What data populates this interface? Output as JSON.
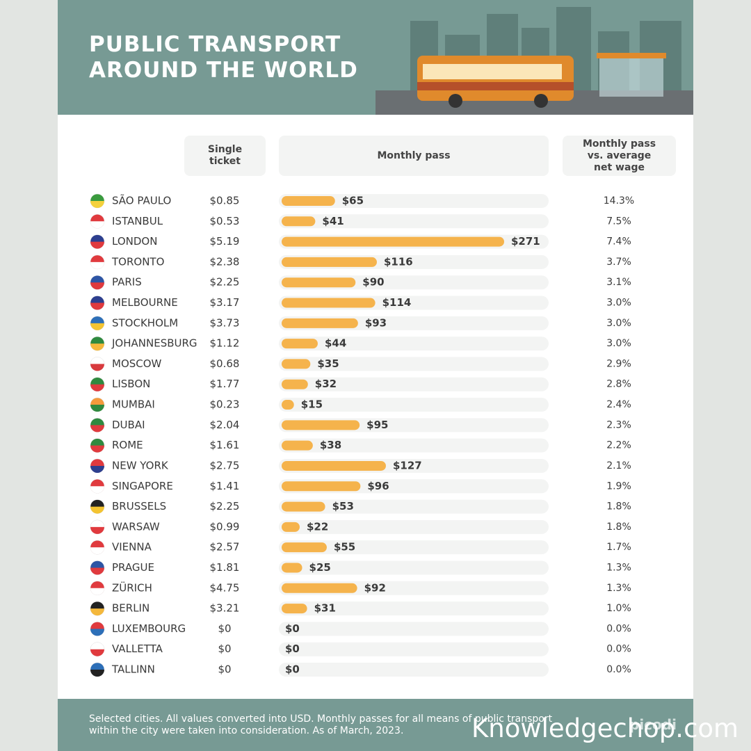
{
  "chart_data": {
    "type": "bar",
    "title": "PUBLIC TRANSPORT AROUND THE WORLD",
    "column_headers": [
      "Single ticket",
      "Monthly pass",
      "Monthly pass vs. average net wage"
    ],
    "categories": [
      "SÃO PAULO",
      "ISTANBUL",
      "LONDON",
      "TORONTO",
      "PARIS",
      "MELBOURNE",
      "STOCKHOLM",
      "JOHANNESBURG",
      "MOSCOW",
      "LISBON",
      "MUMBAI",
      "DUBAI",
      "ROME",
      "NEW YORK",
      "SINGAPORE",
      "BRUSSELS",
      "WARSAW",
      "VIENNA",
      "PRAGUE",
      "ZÜRICH",
      "BERLIN",
      "LUXEMBOURG",
      "VALLETTA",
      "TALLINN"
    ],
    "single_ticket": {
      "values": [
        0.85,
        0.53,
        5.19,
        2.38,
        2.25,
        3.17,
        3.73,
        1.12,
        0.68,
        1.77,
        0.23,
        2.04,
        1.61,
        2.75,
        1.41,
        2.25,
        0.99,
        2.57,
        1.81,
        4.75,
        3.21,
        0,
        0,
        0
      ],
      "value_labels": [
        "$0.85",
        "$0.53",
        "$5.19",
        "$2.38",
        "$2.25",
        "$3.17",
        "$3.73",
        "$1.12",
        "$0.68",
        "$1.77",
        "$0.23",
        "$2.04",
        "$1.61",
        "$2.75",
        "$1.41",
        "$2.25",
        "$0.99",
        "$2.57",
        "$1.81",
        "$4.75",
        "$3.21",
        "$0",
        "$0",
        "$0"
      ]
    },
    "values": [
      65,
      41,
      271,
      116,
      90,
      114,
      93,
      44,
      35,
      32,
      15,
      95,
      38,
      127,
      96,
      53,
      22,
      55,
      25,
      92,
      31,
      0,
      0,
      0
    ],
    "value_labels": [
      "$65",
      "$41",
      "$271",
      "$116",
      "$90",
      "$114",
      "$93",
      "$44",
      "$35",
      "$32",
      "$15",
      "$95",
      "$38",
      "$127",
      "$96",
      "$53",
      "$22",
      "$55",
      "$25",
      "$92",
      "$31",
      "$0",
      "$0",
      "$0"
    ],
    "color": "#f5b34c",
    "wage_share": {
      "values": [
        14.3,
        7.5,
        7.4,
        3.7,
        3.1,
        3.0,
        3.0,
        3.0,
        2.9,
        2.8,
        2.4,
        2.3,
        2.2,
        2.1,
        1.9,
        1.8,
        1.8,
        1.7,
        1.3,
        1.3,
        1.0,
        0.0,
        0.0,
        0.0
      ],
      "value_labels": [
        "14.3%",
        "7.5%",
        "7.4%",
        "3.7%",
        "3.1%",
        "3.0%",
        "3.0%",
        "3.0%",
        "2.9%",
        "2.8%",
        "2.4%",
        "2.3%",
        "2.2%",
        "2.1%",
        "1.9%",
        "1.8%",
        "1.8%",
        "1.7%",
        "1.3%",
        "1.3%",
        "1.0%",
        "0.0%",
        "0.0%",
        "0.0%"
      ]
    },
    "footnote": "Selected cities. All values converted into USD. Monthly passes for all means of public transport within the city were taken into consideration. As of March, 2023.",
    "logo": "picodi",
    "watermark": "Knowledgechop.com"
  }
}
